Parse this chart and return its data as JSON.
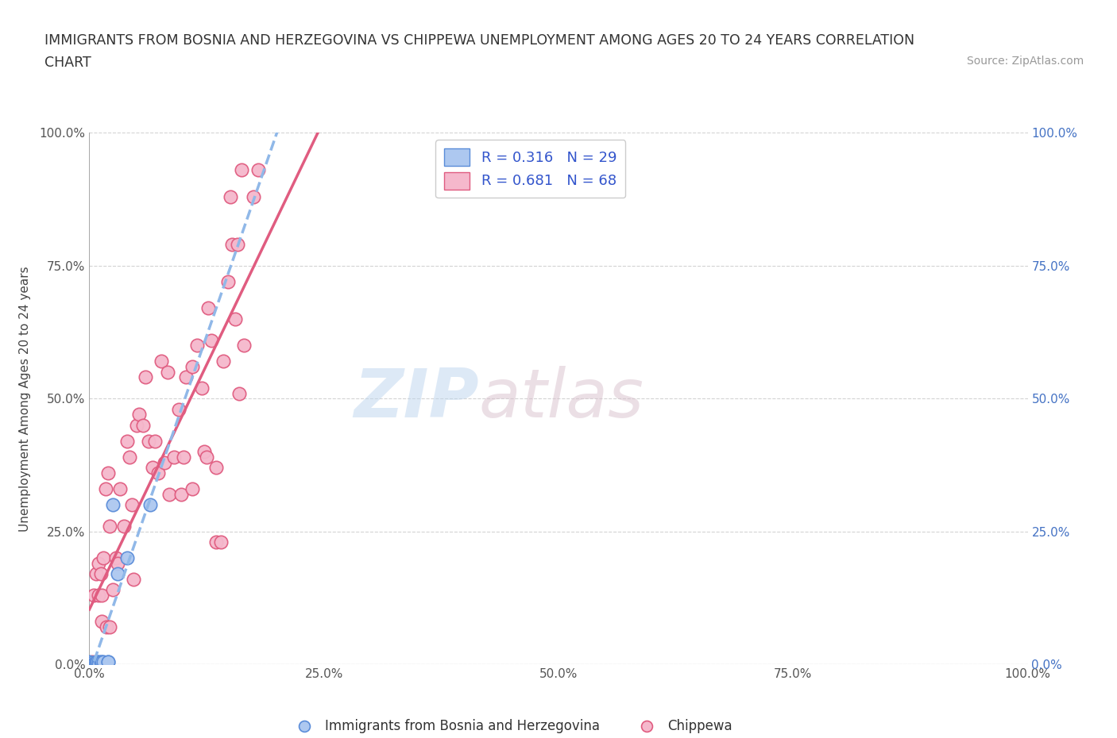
{
  "title_line1": "IMMIGRANTS FROM BOSNIA AND HERZEGOVINA VS CHIPPEWA UNEMPLOYMENT AMONG AGES 20 TO 24 YEARS CORRELATION",
  "title_line2": "CHART",
  "source": "Source: ZipAtlas.com",
  "ylabel": "Unemployment Among Ages 20 to 24 years",
  "xlim": [
    0.0,
    1.0
  ],
  "ylim": [
    0.0,
    1.0
  ],
  "xtick_labels": [
    "0.0%",
    "25.0%",
    "50.0%",
    "75.0%",
    "100.0%"
  ],
  "xtick_values": [
    0.0,
    0.25,
    0.5,
    0.75,
    1.0
  ],
  "ytick_labels": [
    "0.0%",
    "25.0%",
    "50.0%",
    "75.0%",
    "100.0%"
  ],
  "ytick_values": [
    0.0,
    0.25,
    0.5,
    0.75,
    1.0
  ],
  "watermark_zip": "ZIP",
  "watermark_atlas": "atlas",
  "legend_r1": "R = 0.316",
  "legend_n1": "N = 29",
  "legend_r2": "R = 0.681",
  "legend_n2": "N = 68",
  "bosnia_color": "#adc8f0",
  "bosnia_edge_color": "#5b8dd9",
  "chippewa_color": "#f5b8cc",
  "chippewa_edge_color": "#e05c80",
  "bosnia_line_color": "#90b8e8",
  "chippewa_line_color": "#e05c80",
  "legend_blue": "#3355cc",
  "grid_color": "#c8c8c8",
  "bg_color": "#ffffff",
  "label_color": "#555555",
  "right_tick_color": "#4472c4",
  "bosnia_scatter": [
    [
      0.0,
      0.0
    ],
    [
      0.0,
      0.0
    ],
    [
      0.0,
      0.0
    ],
    [
      0.0,
      0.0
    ],
    [
      0.0,
      0.0
    ],
    [
      0.0,
      0.0
    ],
    [
      0.0,
      0.005
    ],
    [
      0.002,
      0.0
    ],
    [
      0.002,
      0.0
    ],
    [
      0.003,
      0.003
    ],
    [
      0.004,
      0.0
    ],
    [
      0.004,
      0.0
    ],
    [
      0.005,
      0.0
    ],
    [
      0.005,
      0.0
    ],
    [
      0.006,
      0.0
    ],
    [
      0.007,
      0.005
    ],
    [
      0.008,
      0.0
    ],
    [
      0.008,
      0.005
    ],
    [
      0.01,
      0.005
    ],
    [
      0.01,
      0.0
    ],
    [
      0.012,
      0.005
    ],
    [
      0.013,
      0.005
    ],
    [
      0.015,
      0.005
    ],
    [
      0.02,
      0.005
    ],
    [
      0.02,
      0.005
    ],
    [
      0.025,
      0.3
    ],
    [
      0.03,
      0.17
    ],
    [
      0.04,
      0.2
    ],
    [
      0.065,
      0.3
    ]
  ],
  "chippewa_scatter": [
    [
      0.0,
      0.0
    ],
    [
      0.0,
      0.0
    ],
    [
      0.002,
      0.0
    ],
    [
      0.003,
      0.005
    ],
    [
      0.004,
      0.0
    ],
    [
      0.005,
      0.0
    ],
    [
      0.005,
      0.13
    ],
    [
      0.007,
      0.17
    ],
    [
      0.008,
      0.0
    ],
    [
      0.01,
      0.13
    ],
    [
      0.01,
      0.19
    ],
    [
      0.012,
      0.17
    ],
    [
      0.013,
      0.13
    ],
    [
      0.013,
      0.08
    ],
    [
      0.015,
      0.2
    ],
    [
      0.017,
      0.33
    ],
    [
      0.018,
      0.07
    ],
    [
      0.02,
      0.36
    ],
    [
      0.022,
      0.26
    ],
    [
      0.022,
      0.07
    ],
    [
      0.025,
      0.14
    ],
    [
      0.028,
      0.2
    ],
    [
      0.03,
      0.19
    ],
    [
      0.033,
      0.33
    ],
    [
      0.037,
      0.26
    ],
    [
      0.04,
      0.42
    ],
    [
      0.043,
      0.39
    ],
    [
      0.045,
      0.3
    ],
    [
      0.047,
      0.16
    ],
    [
      0.05,
      0.45
    ],
    [
      0.053,
      0.47
    ],
    [
      0.057,
      0.45
    ],
    [
      0.06,
      0.54
    ],
    [
      0.063,
      0.42
    ],
    [
      0.067,
      0.37
    ],
    [
      0.07,
      0.42
    ],
    [
      0.073,
      0.36
    ],
    [
      0.077,
      0.57
    ],
    [
      0.08,
      0.38
    ],
    [
      0.083,
      0.55
    ],
    [
      0.085,
      0.32
    ],
    [
      0.09,
      0.39
    ],
    [
      0.095,
      0.48
    ],
    [
      0.098,
      0.32
    ],
    [
      0.1,
      0.39
    ],
    [
      0.103,
      0.54
    ],
    [
      0.11,
      0.56
    ],
    [
      0.11,
      0.33
    ],
    [
      0.115,
      0.6
    ],
    [
      0.12,
      0.52
    ],
    [
      0.122,
      0.4
    ],
    [
      0.125,
      0.39
    ],
    [
      0.127,
      0.67
    ],
    [
      0.13,
      0.61
    ],
    [
      0.135,
      0.37
    ],
    [
      0.135,
      0.23
    ],
    [
      0.14,
      0.23
    ],
    [
      0.143,
      0.57
    ],
    [
      0.148,
      0.72
    ],
    [
      0.15,
      0.88
    ],
    [
      0.152,
      0.79
    ],
    [
      0.155,
      0.65
    ],
    [
      0.158,
      0.79
    ],
    [
      0.16,
      0.51
    ],
    [
      0.162,
      0.93
    ],
    [
      0.165,
      0.6
    ],
    [
      0.175,
      0.88
    ],
    [
      0.18,
      0.93
    ]
  ],
  "bottom_legend_label1": "Immigrants from Bosnia and Herzegovina",
  "bottom_legend_label2": "Chippewa"
}
